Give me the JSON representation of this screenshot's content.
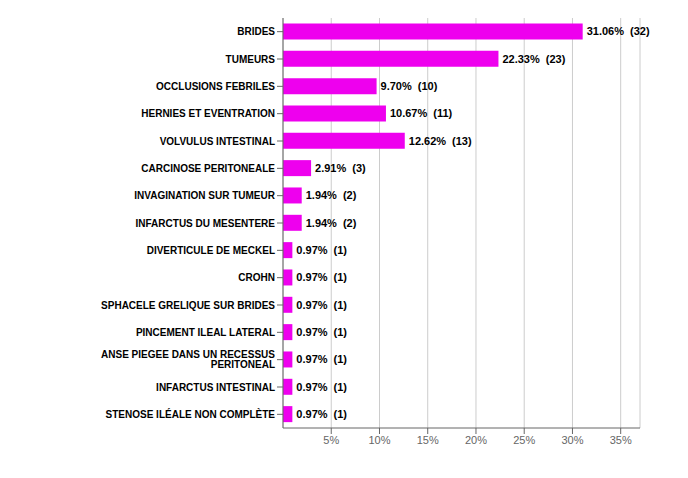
{
  "chart_data": {
    "type": "bar",
    "orientation": "horizontal",
    "categories": [
      "STENOSE ILÉALE NON COMPLÈTE",
      "INFARCTUS INTESTINAL",
      "ANSE PIEGEE DANS UN RECESSUS PERITONEAL",
      "PINCEMENT ILEAL LATERAL",
      "SPHACELE GRELIQUE SUR BRIDES",
      "CROHN",
      "DIVERTICULE DE MECKEL",
      "INFARCTUS DU MESENTERE",
      "INVAGINATION SUR TUMEUR",
      "CARCINOSE PERITONEALE",
      "VOLVULUS INTESTINAL",
      "HERNIES ET EVENTRATION",
      "OCCLUSIONS FEBRILES",
      "TUMEURS",
      "BRIDES"
    ],
    "values": [
      0.97,
      0.97,
      0.97,
      0.97,
      0.97,
      0.97,
      0.97,
      1.94,
      1.94,
      2.91,
      12.62,
      10.67,
      9.7,
      22.33,
      31.06
    ],
    "value_labels": [
      "0.97%",
      "0.97%",
      "0.97%",
      "0.97%",
      "0.97%",
      "0.97%",
      "0.97%",
      "1.94%",
      "1.94%",
      "2.91%",
      "12.62%",
      "10.67%",
      "9.70%",
      "22.33%",
      "31.06%"
    ],
    "counts": [
      1,
      1,
      1,
      1,
      1,
      1,
      1,
      2,
      2,
      3,
      13,
      11,
      10,
      23,
      32
    ],
    "count_labels": [
      "(1)",
      "(1)",
      "(1)",
      "(1)",
      "(1)",
      "(1)",
      "(1)",
      "(2)",
      "(2)",
      "(3)",
      "(13)",
      "(11)",
      "(10)",
      "(23)",
      "(32)"
    ],
    "color": "#EE00EE",
    "xlim": [
      0,
      37
    ],
    "xticks": [
      {
        "value": 5,
        "label": "5%"
      },
      {
        "value": 10,
        "label": "10%"
      },
      {
        "value": 15,
        "label": "15%"
      },
      {
        "value": 20,
        "label": "20%"
      },
      {
        "value": 25,
        "label": "25%"
      },
      {
        "value": 30,
        "label": "30%"
      },
      {
        "value": 35,
        "label": "35%"
      }
    ],
    "grid": true,
    "data_labels": true
  }
}
